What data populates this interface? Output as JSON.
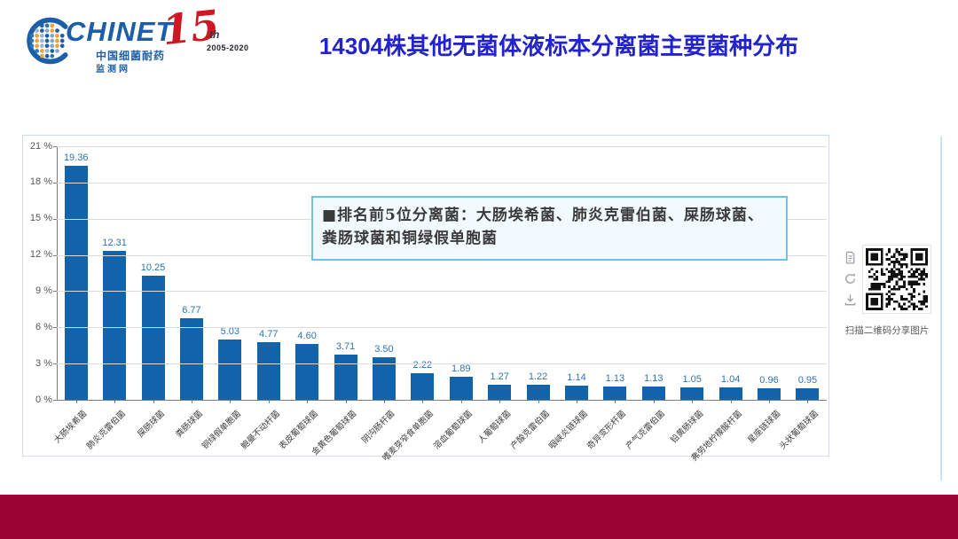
{
  "header": {
    "logo": {
      "brand": "CHINET",
      "cn_name": "中国细菌耐药",
      "cn_name2": "监测网",
      "anniversary_number": "15",
      "anniversary_suffix": "th",
      "anniversary_years": "2005-2020"
    },
    "title": "14304株其他无菌体液标本分离菌主要菌种分布"
  },
  "chart_data": {
    "type": "bar",
    "title": "14304株其他无菌体液标本分离菌主要菌种分布",
    "categories": [
      "大肠埃希菌",
      "肺炎克雷伯菌",
      "屎肠球菌",
      "粪肠球菌",
      "铜绿假单胞菌",
      "鲍曼不动杆菌",
      "表皮葡萄球菌",
      "金黄色葡萄球菌",
      "阴沟肠杆菌",
      "嗜麦芽窄食单胞菌",
      "溶血葡萄球菌",
      "人葡萄球菌",
      "产酸克雷伯菌",
      "咽峡炎链球菌",
      "奇异变形杆菌",
      "产气克雷伯菌",
      "铅黄肠球菌",
      "弗劳地柠檬酸杆菌",
      "星座链球菌",
      "头状葡萄球菌"
    ],
    "values": [
      19.36,
      12.31,
      10.25,
      6.77,
      5.03,
      4.77,
      4.6,
      3.71,
      3.5,
      2.22,
      1.89,
      1.27,
      1.22,
      1.14,
      1.13,
      1.13,
      1.05,
      1.04,
      0.96,
      0.95
    ],
    "value_labels": [
      "19.36",
      "12.31",
      "10.25",
      "6.77",
      "5.03",
      "4.77",
      "4.60",
      "3.71",
      "3.50",
      "2.22",
      "1.89",
      "1.27",
      "1.22",
      "1.14",
      "1.13",
      "1.13",
      "1.05",
      "1.04",
      "0.96",
      "0.95"
    ],
    "xlabel": "",
    "ylabel": "",
    "ylim": [
      0,
      21
    ],
    "yticks": [
      0,
      3,
      6,
      9,
      12,
      15,
      18,
      21
    ],
    "ytick_suffix": " %",
    "grid": true,
    "legend_position": "none",
    "bar_color": "#1264AA",
    "value_label_color": "#2E74B5",
    "annotation": "■排名前5位分离菌：大肠埃希菌、肺炎克雷伯菌、屎肠球菌、粪肠球菌和铜绿假单胞菌"
  },
  "share_panel": {
    "caption": "扫描二维码分享图片",
    "icons": [
      "copy-icon",
      "refresh-icon",
      "download-icon"
    ]
  },
  "colors": {
    "title_blue": "#2323CE",
    "logo_blue": "#1C5FA8",
    "anniversary_red": "#CC1822",
    "footer_red": "#9A0332",
    "bar_blue": "#1264AA",
    "value_label_blue": "#2E74B5",
    "annotation_border": "#6FC2E3",
    "annotation_bg": "#F1FAFE"
  }
}
